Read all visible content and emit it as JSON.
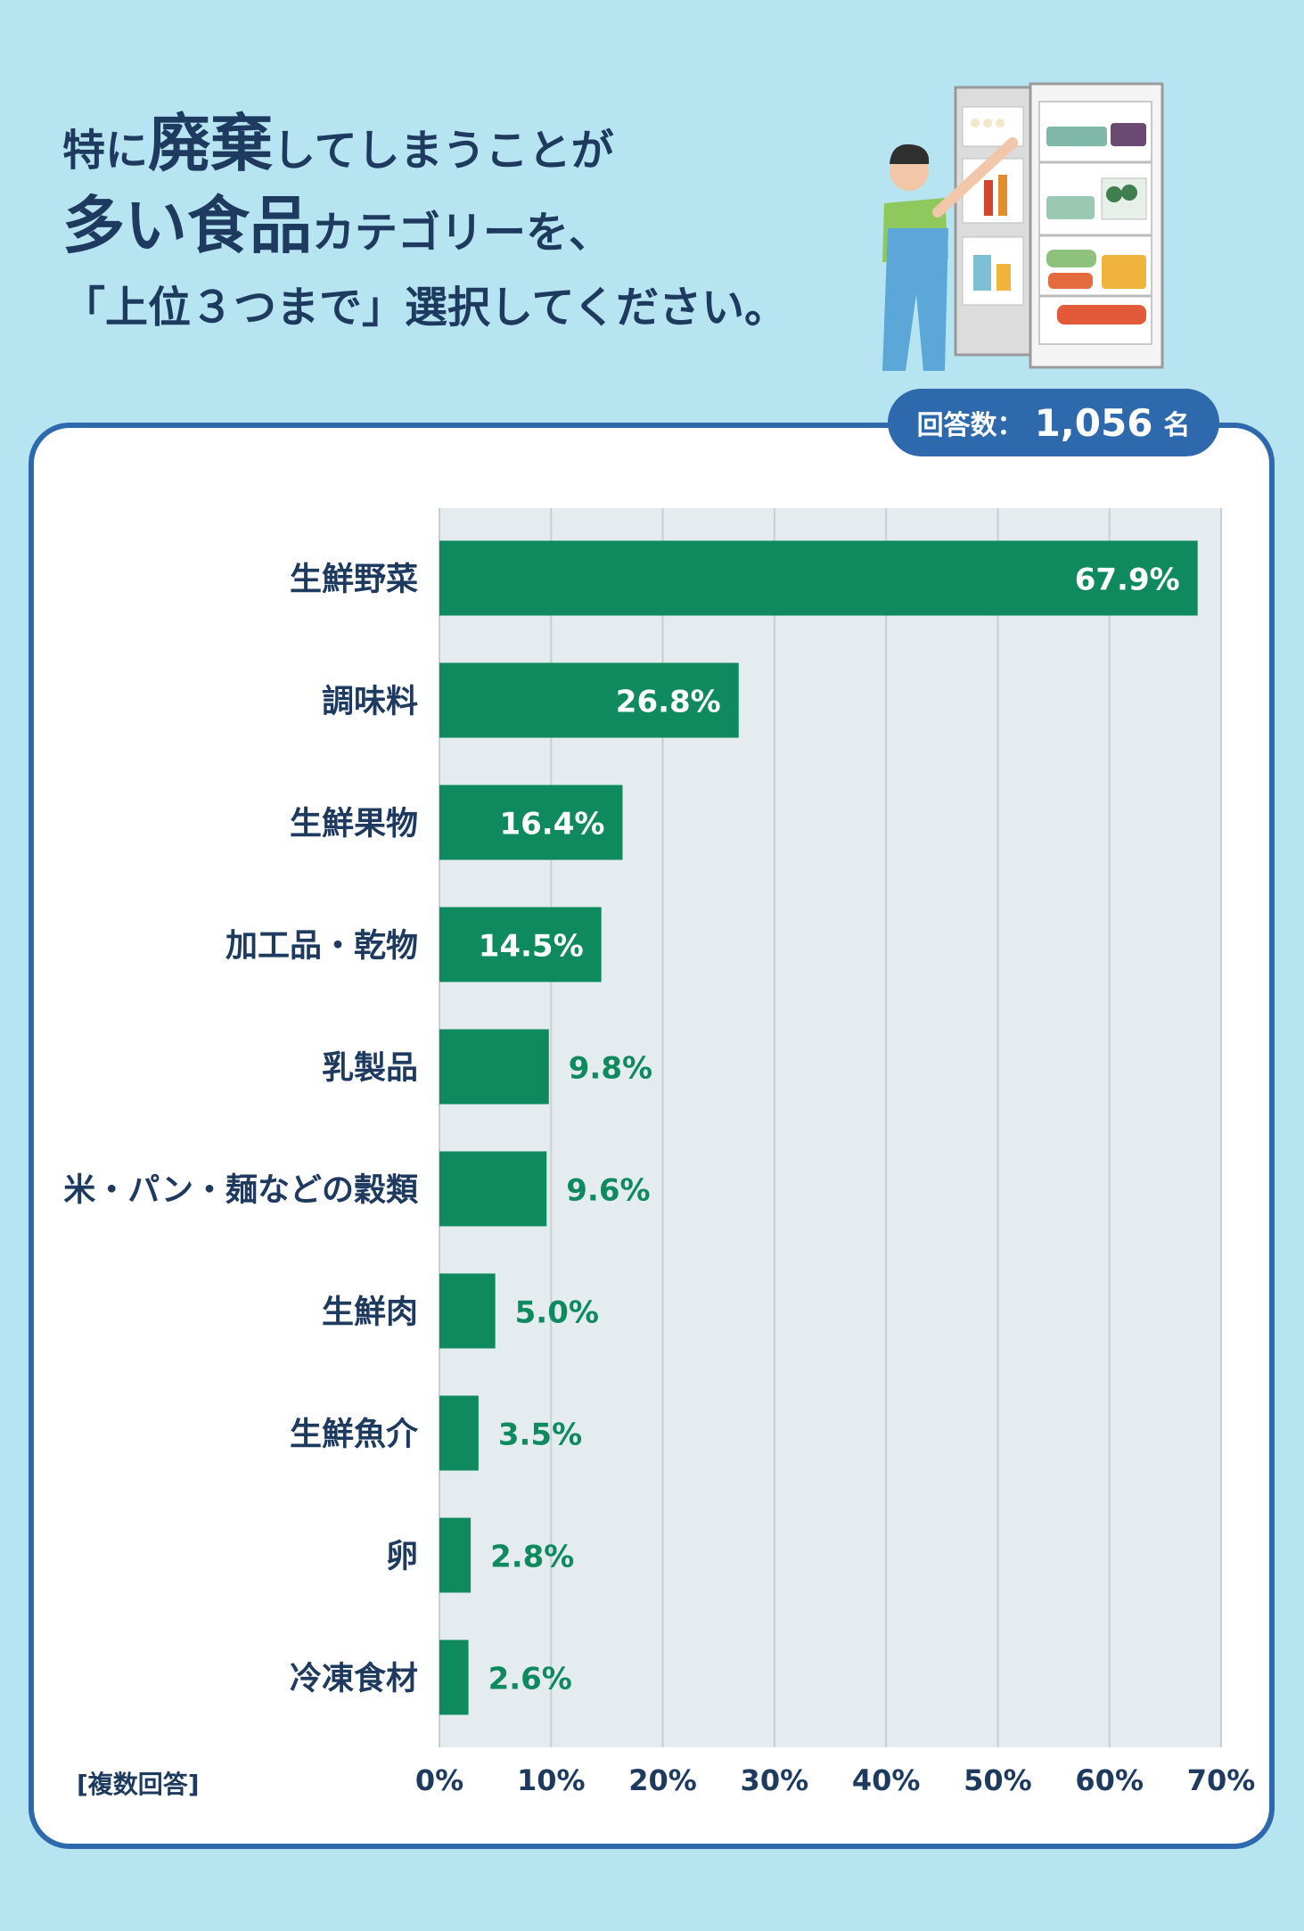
{
  "header": {
    "line1_a": "特に",
    "line1_b": "廃棄",
    "line1_c": "してしまうことが",
    "line2_a": "多い食品",
    "line2_b": "カテゴリーを、",
    "line3": "「上位３つまで」選択してください。"
  },
  "respondents": {
    "label": "回答数：",
    "count": "1,056",
    "unit": "名"
  },
  "note": "[複数回答]",
  "colors": {
    "bar": "#0f8a5f",
    "plot_bg": "#e4ecef",
    "grid": "#c5d0d4",
    "label": "#1e3a5f",
    "badge": "#2e68ad",
    "background": "#b7e4f1"
  },
  "chart_data": {
    "type": "bar",
    "orientation": "horizontal",
    "categories": [
      "生鮮野菜",
      "調味料",
      "生鮮果物",
      "加工品・乾物",
      "乳製品",
      "米・パン・麺などの穀類",
      "生鮮肉",
      "生鮮魚介",
      "卵",
      "冷凍食材"
    ],
    "values": [
      67.9,
      26.8,
      16.4,
      14.5,
      9.8,
      9.6,
      5.0,
      3.5,
      2.8,
      2.6
    ],
    "value_labels": [
      "67.9%",
      "26.8%",
      "16.4%",
      "14.5%",
      "9.8%",
      "9.6%",
      "5.0%",
      "3.5%",
      "2.8%",
      "2.6%"
    ],
    "xlim": [
      0,
      70
    ],
    "xticks": [
      "0%",
      "10%",
      "20%",
      "30%",
      "40%",
      "50%",
      "60%",
      "70%"
    ],
    "grid": true
  }
}
